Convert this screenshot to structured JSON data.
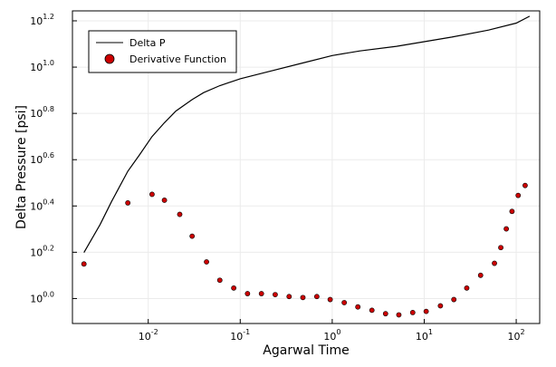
{
  "chart_data": {
    "type": "line",
    "xlabel": "Agarwal Time",
    "ylabel": "Delta Pressure [psi]",
    "xscale": "log",
    "yscale": "log",
    "xlim": [
      0.0015,
      180
    ],
    "ylim": [
      0.78,
      17.5
    ],
    "grid": true,
    "legend_position": "top-left",
    "x_ticks": [
      {
        "base": "10",
        "exp": "-2",
        "value": 0.01
      },
      {
        "base": "10",
        "exp": "-1",
        "value": 0.1
      },
      {
        "base": "10",
        "exp": "0",
        "value": 1
      },
      {
        "base": "10",
        "exp": "1",
        "value": 10
      },
      {
        "base": "10",
        "exp": "2",
        "value": 100
      }
    ],
    "y_ticks": [
      {
        "base": "10",
        "exp": "0.0",
        "value": 1.0
      },
      {
        "base": "10",
        "exp": "0.2",
        "value": 1.585
      },
      {
        "base": "10",
        "exp": "0.4",
        "value": 2.512
      },
      {
        "base": "10",
        "exp": "0.6",
        "value": 3.981
      },
      {
        "base": "10",
        "exp": "0.8",
        "value": 6.31
      },
      {
        "base": "10",
        "exp": "1.0",
        "value": 10.0
      },
      {
        "base": "10",
        "exp": "1.2",
        "value": 15.85
      }
    ],
    "series": [
      {
        "name": "Delta P",
        "kind": "line",
        "color": "#000000",
        "x": [
          0.002,
          0.003,
          0.004,
          0.006,
          0.008,
          0.011,
          0.015,
          0.02,
          0.03,
          0.04,
          0.06,
          0.1,
          0.2,
          0.5,
          1,
          2,
          5,
          10,
          20,
          50,
          100,
          140
        ],
        "y": [
          1.58,
          2.09,
          2.63,
          3.55,
          4.17,
          5.01,
          5.75,
          6.46,
          7.24,
          7.76,
          8.32,
          8.91,
          9.55,
          10.47,
          11.22,
          11.75,
          12.3,
          12.88,
          13.49,
          14.45,
          15.49,
          16.6
        ]
      },
      {
        "name": "Derivative Function",
        "kind": "scatter",
        "color": "#cc0000",
        "x": [
          0.002,
          0.006,
          0.011,
          0.015,
          0.022,
          0.03,
          0.043,
          0.06,
          0.085,
          0.12,
          0.17,
          0.24,
          0.34,
          0.48,
          0.68,
          0.95,
          1.35,
          1.9,
          2.7,
          3.8,
          5.3,
          7.5,
          10.5,
          15,
          21,
          29,
          41,
          58,
          68,
          78,
          90,
          105,
          125
        ],
        "y": [
          1.41,
          2.59,
          2.82,
          2.66,
          2.31,
          1.86,
          1.44,
          1.2,
          1.11,
          1.05,
          1.05,
          1.04,
          1.02,
          1.01,
          1.02,
          0.99,
          0.96,
          0.92,
          0.89,
          0.86,
          0.85,
          0.87,
          0.88,
          0.93,
          0.99,
          1.11,
          1.26,
          1.42,
          1.66,
          2.0,
          2.38,
          2.79,
          3.08
        ]
      }
    ]
  }
}
